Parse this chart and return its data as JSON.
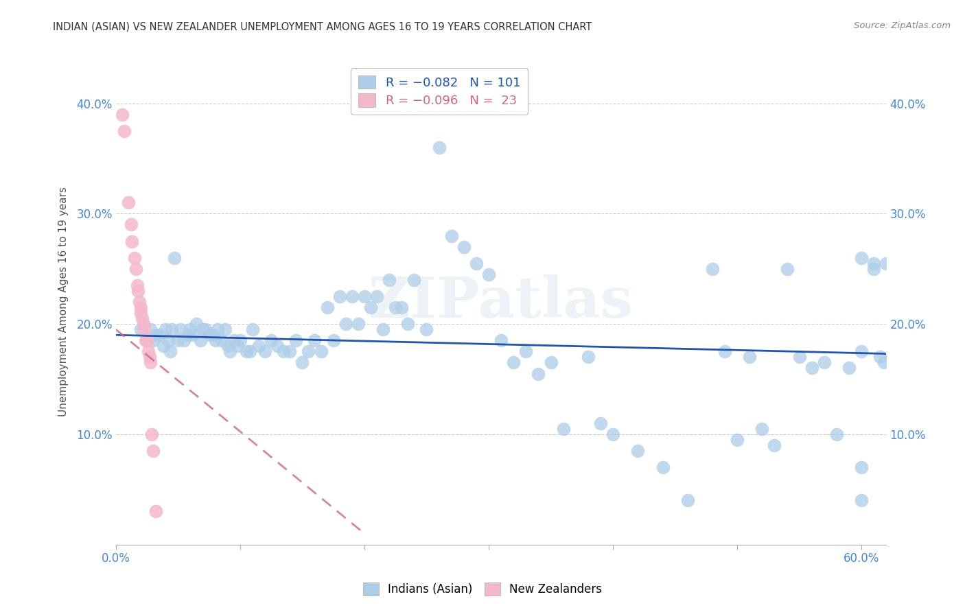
{
  "title": "INDIAN (ASIAN) VS NEW ZEALANDER UNEMPLOYMENT AMONG AGES 16 TO 19 YEARS CORRELATION CHART",
  "source": "Source: ZipAtlas.com",
  "ylabel": "Unemployment Among Ages 16 to 19 years",
  "xlim": [
    0.0,
    0.62
  ],
  "ylim": [
    0.0,
    0.44
  ],
  "yticks": [
    0.0,
    0.1,
    0.2,
    0.3,
    0.4
  ],
  "ytick_labels": [
    "",
    "10.0%",
    "20.0%",
    "30.0%",
    "40.0%"
  ],
  "xticks": [
    0.0,
    0.1,
    0.2,
    0.3,
    0.4,
    0.5,
    0.6
  ],
  "xtick_labels_left": "0.0%",
  "xtick_labels_right": "60.0%",
  "blue_color": "#aecde8",
  "pink_color": "#f4b8cb",
  "blue_line_color": "#2255aa",
  "pink_line_color": "#cc6688",
  "grid_color": "#cccccc",
  "title_color": "#333333",
  "axis_color": "#4488cc",
  "watermark_text": "ZIPatlas",
  "R_blue": -0.082,
  "N_blue": 101,
  "R_pink": -0.096,
  "N_pink": 23,
  "blue_line_x0": 0.0,
  "blue_line_y0": 0.19,
  "blue_line_x1": 0.62,
  "blue_line_y1": 0.173,
  "pink_line_x0": 0.0,
  "pink_line_y0": 0.195,
  "pink_line_x1": 0.2,
  "pink_line_y1": 0.01,
  "blue_x": [
    0.02,
    0.025,
    0.028,
    0.03,
    0.032,
    0.035,
    0.038,
    0.04,
    0.042,
    0.044,
    0.045,
    0.047,
    0.05,
    0.052,
    0.055,
    0.058,
    0.06,
    0.062,
    0.065,
    0.068,
    0.07,
    0.072,
    0.075,
    0.078,
    0.08,
    0.082,
    0.085,
    0.088,
    0.09,
    0.092,
    0.095,
    0.098,
    0.1,
    0.105,
    0.108,
    0.11,
    0.115,
    0.12,
    0.125,
    0.13,
    0.135,
    0.14,
    0.145,
    0.15,
    0.155,
    0.16,
    0.165,
    0.17,
    0.175,
    0.18,
    0.185,
    0.19,
    0.195,
    0.2,
    0.205,
    0.21,
    0.215,
    0.22,
    0.225,
    0.23,
    0.235,
    0.24,
    0.25,
    0.26,
    0.27,
    0.28,
    0.29,
    0.3,
    0.31,
    0.32,
    0.33,
    0.34,
    0.35,
    0.36,
    0.38,
    0.39,
    0.4,
    0.42,
    0.44,
    0.46,
    0.48,
    0.49,
    0.5,
    0.51,
    0.52,
    0.53,
    0.54,
    0.55,
    0.56,
    0.57,
    0.58,
    0.59,
    0.6,
    0.6,
    0.6,
    0.6,
    0.61,
    0.61,
    0.615,
    0.618,
    0.62
  ],
  "blue_y": [
    0.195,
    0.185,
    0.195,
    0.185,
    0.19,
    0.19,
    0.18,
    0.195,
    0.185,
    0.175,
    0.195,
    0.26,
    0.185,
    0.195,
    0.185,
    0.19,
    0.195,
    0.19,
    0.2,
    0.185,
    0.195,
    0.195,
    0.19,
    0.19,
    0.185,
    0.195,
    0.185,
    0.195,
    0.18,
    0.175,
    0.185,
    0.18,
    0.185,
    0.175,
    0.175,
    0.195,
    0.18,
    0.175,
    0.185,
    0.18,
    0.175,
    0.175,
    0.185,
    0.165,
    0.175,
    0.185,
    0.175,
    0.215,
    0.185,
    0.225,
    0.2,
    0.225,
    0.2,
    0.225,
    0.215,
    0.225,
    0.195,
    0.24,
    0.215,
    0.215,
    0.2,
    0.24,
    0.195,
    0.36,
    0.28,
    0.27,
    0.255,
    0.245,
    0.185,
    0.165,
    0.175,
    0.155,
    0.165,
    0.105,
    0.17,
    0.11,
    0.1,
    0.085,
    0.07,
    0.04,
    0.25,
    0.175,
    0.095,
    0.17,
    0.105,
    0.09,
    0.25,
    0.17,
    0.16,
    0.165,
    0.1,
    0.16,
    0.04,
    0.07,
    0.26,
    0.175,
    0.255,
    0.25,
    0.17,
    0.165,
    0.255
  ],
  "pink_x": [
    0.005,
    0.007,
    0.01,
    0.012,
    0.013,
    0.015,
    0.016,
    0.017,
    0.018,
    0.019,
    0.02,
    0.02,
    0.021,
    0.022,
    0.023,
    0.024,
    0.025,
    0.026,
    0.027,
    0.028,
    0.029,
    0.03,
    0.032
  ],
  "pink_y": [
    0.39,
    0.375,
    0.31,
    0.29,
    0.275,
    0.26,
    0.25,
    0.235,
    0.23,
    0.22,
    0.215,
    0.21,
    0.205,
    0.2,
    0.195,
    0.185,
    0.185,
    0.175,
    0.17,
    0.165,
    0.1,
    0.085,
    0.03
  ]
}
